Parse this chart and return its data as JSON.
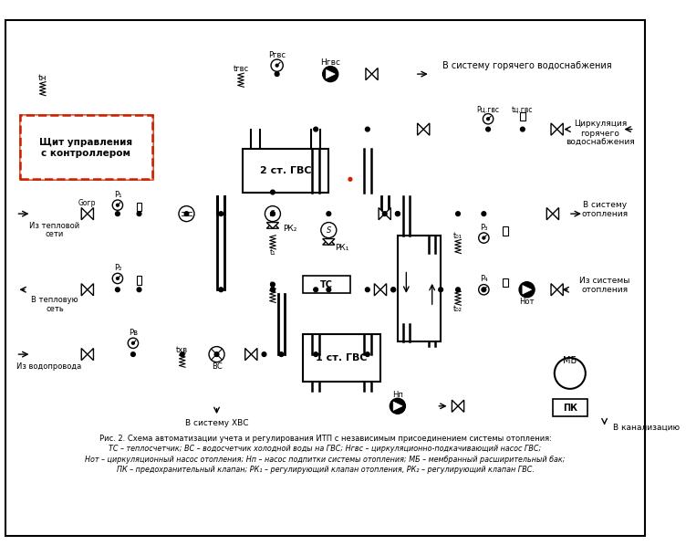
{
  "title": "Рис. 2. Схема автоматизации учета и регулирования ИТП с независимым присоединением системы отопления:",
  "leg1": "ТС – теплосчетчик; ВС – водосчетчик холодной воды на ГВС; Hгвс – циркуляционно-подкачивающий насос ГВС;",
  "leg2": "Hот – циркуляционный насос отопления; Hп – насос подпитки системы отопления; МБ – мембранный расширительный бак;",
  "leg3": "ПК – предохранительный клапан; РК₁ – регулирующий клапан отопления, РК₂ – регулирующий клапан ГВС.",
  "bg": "#ffffff",
  "red": "#cc2200",
  "blk": "#000000"
}
